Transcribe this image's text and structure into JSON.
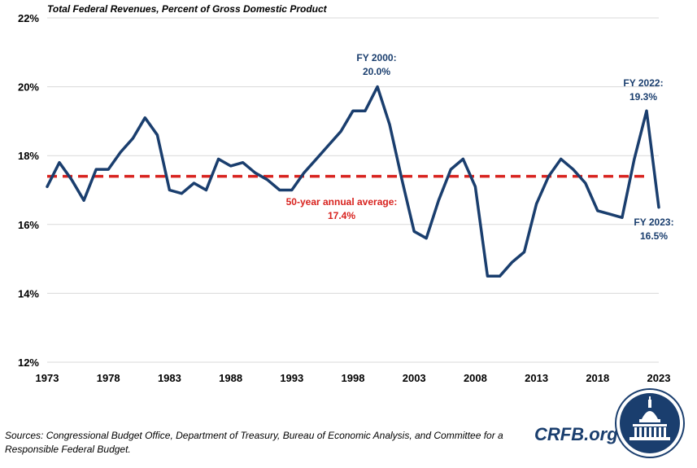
{
  "chart_data": {
    "type": "line",
    "title": "Total Federal Revenues, Percent of Gross Domestic Product",
    "ylim": [
      12,
      22
    ],
    "y_ticks": [
      "12%",
      "14%",
      "16%",
      "18%",
      "20%",
      "22%"
    ],
    "y_tick_values": [
      12,
      14,
      16,
      18,
      20,
      22
    ],
    "xlim": [
      1973,
      2023
    ],
    "x_ticks": [
      "1973",
      "1978",
      "1983",
      "1988",
      "1993",
      "1998",
      "2003",
      "2008",
      "2013",
      "2018",
      "2023"
    ],
    "x_tick_values": [
      1973,
      1978,
      1983,
      1988,
      1993,
      1998,
      2003,
      2008,
      2013,
      2018,
      2023
    ],
    "grid": "horizontal",
    "series": [
      {
        "name": "Total Federal Revenues (% of GDP)",
        "color": "#1a3e6e",
        "x": [
          1973,
          1974,
          1975,
          1976,
          1977,
          1978,
          1979,
          1980,
          1981,
          1982,
          1983,
          1984,
          1985,
          1986,
          1987,
          1988,
          1989,
          1990,
          1991,
          1992,
          1993,
          1994,
          1995,
          1996,
          1997,
          1998,
          1999,
          2000,
          2001,
          2002,
          2003,
          2004,
          2005,
          2006,
          2007,
          2008,
          2009,
          2010,
          2011,
          2012,
          2013,
          2014,
          2015,
          2016,
          2017,
          2018,
          2019,
          2020,
          2021,
          2022,
          2023
        ],
        "values": [
          17.1,
          17.8,
          17.3,
          16.7,
          17.6,
          17.6,
          18.1,
          18.5,
          19.1,
          18.6,
          17.0,
          16.9,
          17.2,
          17.0,
          17.9,
          17.7,
          17.8,
          17.5,
          17.3,
          17.0,
          17.0,
          17.5,
          17.9,
          18.3,
          18.7,
          19.3,
          19.3,
          20.0,
          18.9,
          17.3,
          15.8,
          15.6,
          16.7,
          17.6,
          17.9,
          17.1,
          14.5,
          14.5,
          14.9,
          15.2,
          16.6,
          17.4,
          17.9,
          17.6,
          17.2,
          16.4,
          16.3,
          16.2,
          17.9,
          19.3,
          16.5
        ]
      }
    ],
    "reference_line": {
      "value": 17.4,
      "color": "#d8231f",
      "style": "dashed"
    },
    "annotations": [
      {
        "x": 2000,
        "lines": [
          "FY 2000:",
          "20.0%"
        ],
        "color": "#1a3e6e"
      },
      {
        "x": 2022,
        "lines": [
          "FY 2022:",
          "19.3%"
        ],
        "color": "#1a3e6e"
      },
      {
        "x": 2023,
        "lines": [
          "FY 2023:",
          "16.5%"
        ],
        "color": "#1a3e6e"
      },
      {
        "x": 1995,
        "lines": [
          "50-year annual average:",
          "17.4%"
        ],
        "color": "#d8231f"
      }
    ]
  },
  "footer": {
    "source": "Sources: Congressional Budget Office, Department of Treasury,  Bureau of Economic Analysis, and Committee for a Responsible Federal Budget.",
    "brand": "CRFB.org"
  },
  "colors": {
    "line": "#1a3e6e",
    "average": "#d8231f",
    "grid": "#d9d9d9"
  }
}
